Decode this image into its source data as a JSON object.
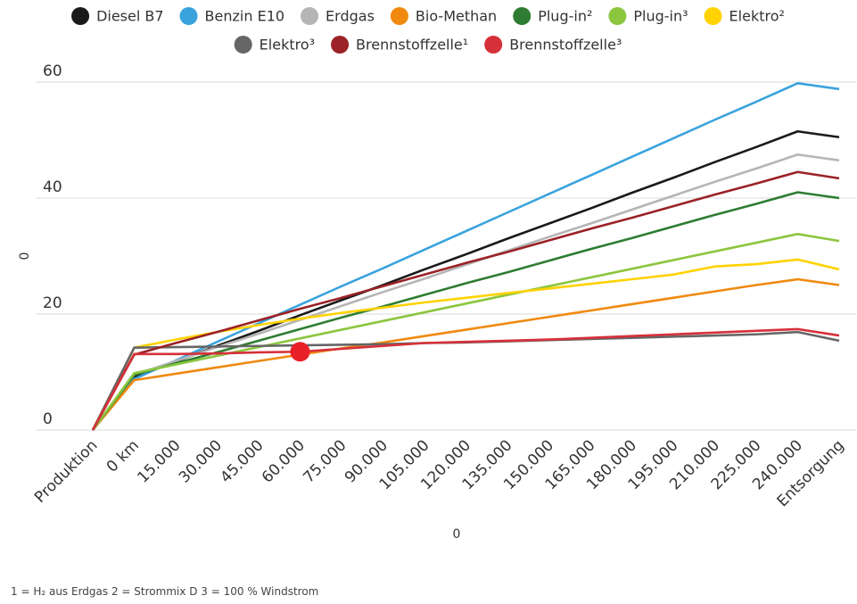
{
  "chart_data": {
    "type": "line",
    "x_label": "0",
    "y_label": "0",
    "footnote": "1 = H₂ aus Erdgas    2 = Strommix D    3 = 100 % Windstrom",
    "categories": [
      "Produktion",
      "0 km",
      "15.000",
      "30.000",
      "45.000",
      "60.000",
      "75.000",
      "90.000",
      "105.000",
      "120.000",
      "135.000",
      "150.000",
      "165.000",
      "180.000",
      "195.000",
      "210.000",
      "225.000",
      "240.000",
      "Entsorgung"
    ],
    "ylim": [
      0,
      60
    ],
    "yticks": [
      0,
      20,
      40,
      60
    ],
    "grid": true,
    "highlight": {
      "series": 9,
      "index": 5,
      "color": "#e8202a"
    },
    "series": [
      {
        "name": "Diesel B7",
        "color": "#1a1a1a",
        "values": [
          0,
          9.2,
          11.8,
          14.5,
          17.1,
          19.8,
          22.4,
          25.0,
          27.7,
          30.3,
          33.0,
          35.6,
          38.2,
          40.9,
          43.5,
          46.2,
          48.8,
          51.5,
          50.5
        ]
      },
      {
        "name": "Benzin E10",
        "color": "#3aa3dd",
        "values": [
          0,
          8.8,
          12.0,
          15.2,
          18.4,
          21.6,
          24.8,
          27.9,
          31.1,
          34.3,
          37.5,
          40.7,
          43.9,
          47.1,
          50.3,
          53.5,
          56.6,
          59.8,
          58.8
        ]
      },
      {
        "name": "Erdgas",
        "color": "#b5b5b5",
        "values": [
          0,
          9.5,
          11.9,
          14.3,
          16.6,
          19.0,
          21.4,
          23.8,
          26.1,
          28.5,
          30.9,
          33.3,
          35.6,
          38.0,
          40.4,
          42.8,
          45.1,
          47.5,
          46.5
        ]
      },
      {
        "name": "Bio-Methan",
        "color": "#f0890f",
        "values": [
          0,
          8.6,
          9.7,
          10.8,
          11.9,
          13.0,
          14.1,
          15.1,
          16.2,
          17.3,
          18.4,
          19.5,
          20.6,
          21.7,
          22.8,
          23.9,
          25.0,
          26.0,
          25.0
        ]
      },
      {
        "name": "Plug-in²",
        "color": "#2e7d32",
        "values": [
          0,
          9.5,
          11.5,
          13.4,
          15.4,
          17.4,
          19.4,
          21.3,
          23.3,
          25.3,
          27.2,
          29.2,
          31.2,
          33.1,
          35.1,
          37.1,
          39.0,
          41.0,
          40.0
        ]
      },
      {
        "name": "Plug-in³",
        "color": "#8cc63f",
        "values": [
          0,
          9.8,
          11.3,
          12.8,
          14.3,
          15.8,
          17.3,
          18.8,
          20.3,
          21.8,
          23.3,
          24.8,
          26.3,
          27.8,
          29.3,
          30.8,
          32.3,
          33.8,
          32.6
        ]
      },
      {
        "name": "Elektro²",
        "color": "#ffd200",
        "values": [
          0,
          14.2,
          15.6,
          16.9,
          18.1,
          19.2,
          20.2,
          21.1,
          22.0,
          22.8,
          23.6,
          24.4,
          25.2,
          26.0,
          26.8,
          28.2,
          28.6,
          29.4,
          27.7
        ]
      },
      {
        "name": "Elektro³",
        "color": "#666666",
        "values": [
          0,
          14.2,
          14.3,
          14.4,
          14.5,
          14.6,
          14.7,
          14.8,
          15.0,
          15.1,
          15.3,
          15.5,
          15.7,
          15.9,
          16.1,
          16.3,
          16.5,
          16.9,
          15.4
        ]
      },
      {
        "name": "Brennstoffzelle¹",
        "color": "#9b2226",
        "values": [
          0,
          13.0,
          15.0,
          16.9,
          18.9,
          20.9,
          22.8,
          24.8,
          26.8,
          28.8,
          30.7,
          32.7,
          34.7,
          36.6,
          38.6,
          40.6,
          42.5,
          44.5,
          43.4
        ]
      },
      {
        "name": "Brennstoffzelle³",
        "color": "#d6303a",
        "values": [
          0,
          13.1,
          13.1,
          13.2,
          13.4,
          13.5,
          14.0,
          14.5,
          15.0,
          15.2,
          15.4,
          15.6,
          15.9,
          16.2,
          16.5,
          16.8,
          17.1,
          17.4,
          16.3
        ]
      }
    ]
  }
}
